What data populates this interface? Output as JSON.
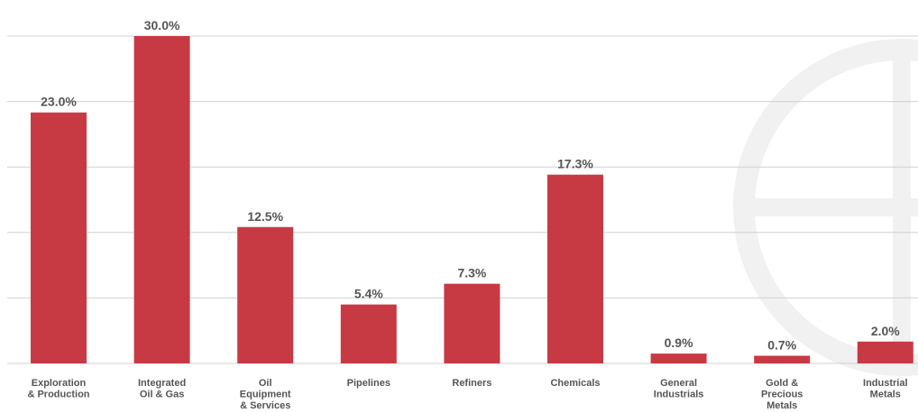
{
  "colors": {
    "bar": "#c73a44",
    "grid": "#d0d0d0",
    "label": "#555555",
    "watermark": "#f1f1f1"
  },
  "watermark": {
    "icon": "circle-emblem-icon"
  },
  "chart_data": {
    "type": "bar",
    "title": "",
    "xlabel": "",
    "ylabel": "",
    "ylim": [
      0,
      36
    ],
    "grid": true,
    "gridlines": [
      0,
      6,
      12,
      18,
      24,
      30,
      36
    ],
    "categories": [
      [
        "Exploration",
        "& Production"
      ],
      [
        "Integrated",
        "Oil & Gas"
      ],
      [
        "Oil",
        "Equipment",
        "& Services"
      ],
      [
        "Pipelines"
      ],
      [
        "Refiners"
      ],
      [
        "Chemicals"
      ],
      [
        "General",
        "Industrials"
      ],
      [
        "Gold &",
        "Precious",
        "Metals"
      ],
      [
        "Industrial",
        "Metals"
      ]
    ],
    "values": [
      23.0,
      30.0,
      12.5,
      5.4,
      7.3,
      17.3,
      0.9,
      0.7,
      2.0
    ],
    "value_labels": [
      "23.0%",
      "30.0%",
      "12.5%",
      "5.4%",
      "7.3%",
      "17.3%",
      "0.9%",
      "0.7%",
      "2.0%"
    ]
  }
}
